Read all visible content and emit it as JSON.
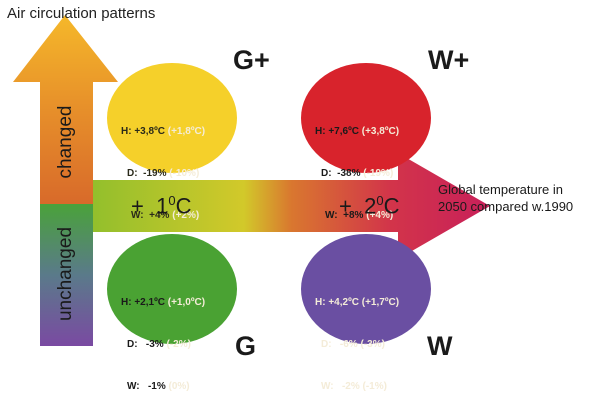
{
  "title": "Air circulation patterns",
  "axis": {
    "changed": "changed",
    "unchanged": "unchanged"
  },
  "arrow": {
    "label_1": {
      "prefix": "+",
      "value": "1",
      "sup": "0",
      "unit": "C"
    },
    "label_2": {
      "prefix": "+",
      "value": "2",
      "sup": "0",
      "unit": "C"
    },
    "global_line_1": "Global temperature in",
    "global_line_2": "2050 compared w.1990"
  },
  "scenarios": {
    "g_plus": {
      "name": "G+",
      "color": "#f5d02a",
      "rows": [
        {
          "key": "H:",
          "value": "+3,8ºC",
          "delta": "(+1,8ºC)"
        },
        {
          "key": "D:",
          "value": "-19%",
          "delta": "(-10%)"
        },
        {
          "key": "W:",
          "value": "+4%",
          "delta": "(+2%)"
        }
      ]
    },
    "w_plus": {
      "name": "W+",
      "color": "#d8232c",
      "rows": [
        {
          "key": "H:",
          "value": "+7,6ºC",
          "delta": "(+3,8ºC)"
        },
        {
          "key": "D:",
          "value": "-38%",
          "delta": "(-19%)"
        },
        {
          "key": "W:",
          "value": "+8%",
          "delta": "(+4%)"
        }
      ]
    },
    "g": {
      "name": "G",
      "color": "#4aa233",
      "rows": [
        {
          "key": "H:",
          "value": "+2,1ºC",
          "delta": "(+1,0ºC)"
        },
        {
          "key": "D:",
          "value": "-3%",
          "delta": "(-2%)"
        },
        {
          "key": "W:",
          "value": "-1%",
          "delta": "(0%)"
        }
      ]
    },
    "w": {
      "name": "W",
      "color": "#6a4fa2",
      "rows": [
        {
          "key": "H:",
          "value": "+4,2ºC",
          "delta": "(+1,7ºC)"
        },
        {
          "key": "D:",
          "value": "-6%",
          "delta": "(-3%)"
        },
        {
          "key": "W:",
          "value": "-2%",
          "delta": "(-1%)"
        }
      ]
    }
  },
  "colors": {
    "text_dark": "#1a1a1a",
    "delta_text": "#f4ecd8"
  }
}
